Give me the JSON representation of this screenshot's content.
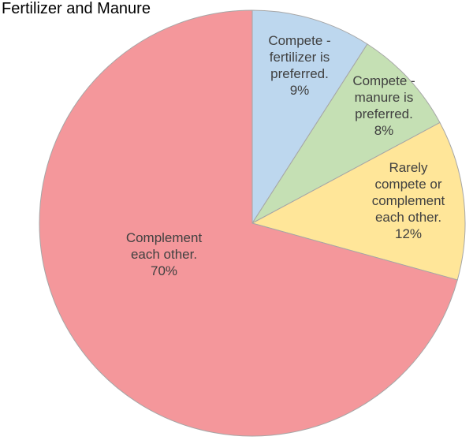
{
  "chart_data": {
    "type": "pie",
    "title": "Fertilizer and Manure",
    "start_angle_deg": 0,
    "direction": "clockwise",
    "slices": [
      {
        "label_lines": [
          "Compete -",
          "fertilizer is",
          "preferred."
        ],
        "percent_label": "9%",
        "value": 9,
        "color": "#BDD7EE"
      },
      {
        "label_lines": [
          "Compete -",
          "manure is",
          "preferred."
        ],
        "percent_label": "8%",
        "value": 8,
        "color": "#C5E0B4"
      },
      {
        "label_lines": [
          "Rarely",
          "compete or",
          "complement",
          "each other."
        ],
        "percent_label": "12%",
        "value": 12,
        "color": "#FFE699"
      },
      {
        "label_lines": [
          "Complement",
          "each other."
        ],
        "percent_label": "70%",
        "value": 70,
        "color": "#F4979B"
      }
    ],
    "edge_color": "#A6A6A6",
    "label_color": "#404040"
  }
}
